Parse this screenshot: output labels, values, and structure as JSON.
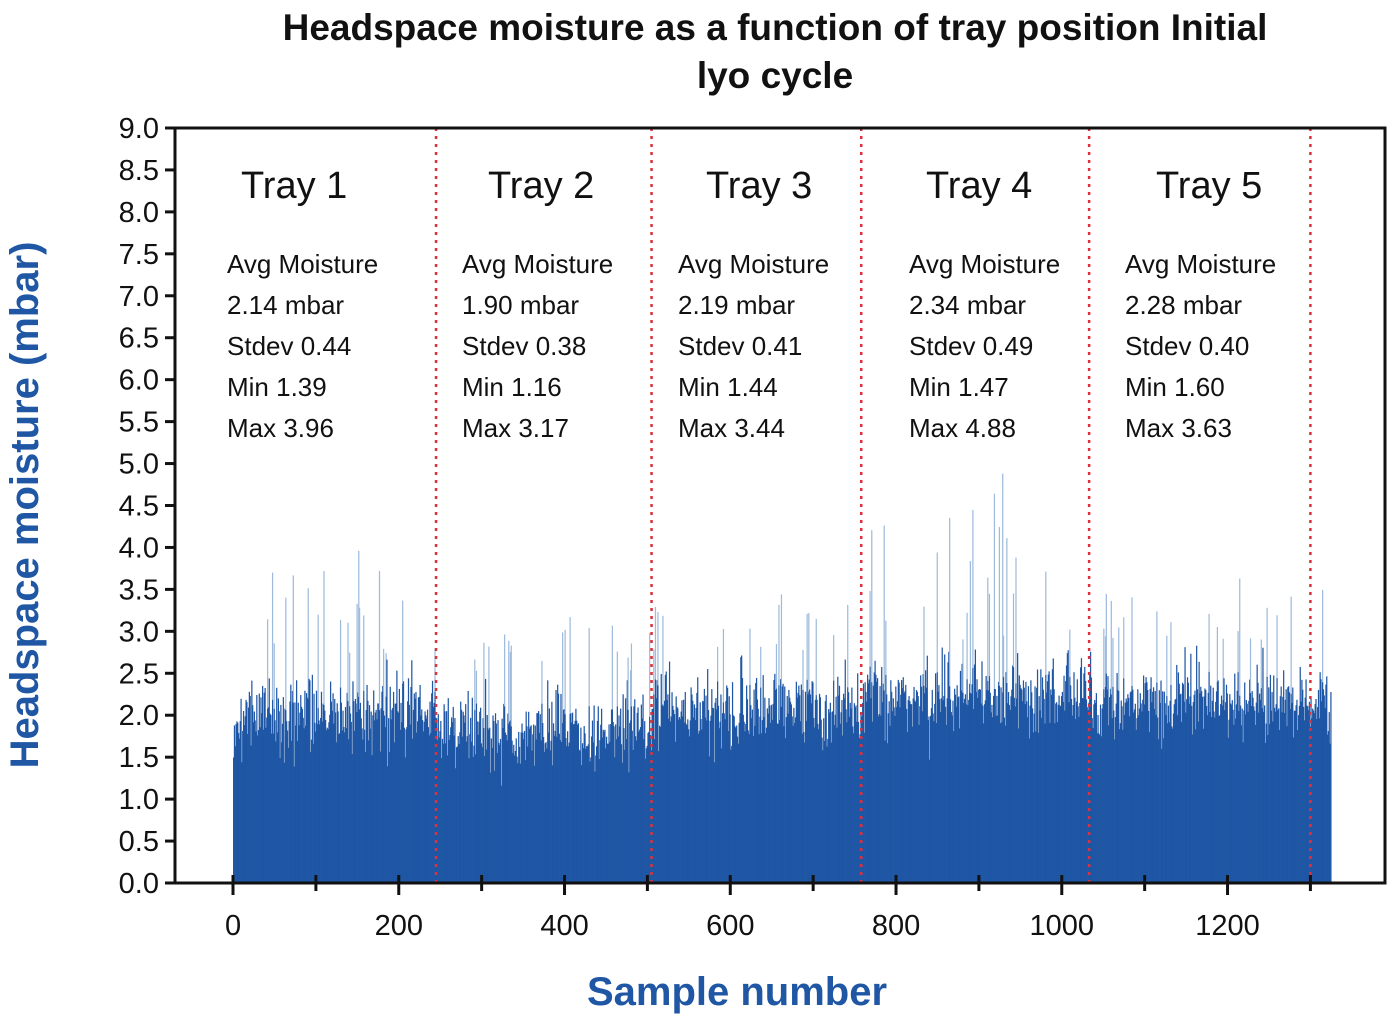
{
  "chart_data": {
    "type": "bar",
    "title": "Headspace moisture as a function of tray position Initial lyo cycle",
    "xlabel": "Sample number",
    "ylabel": "Headspace moisture (mbar)",
    "xlim": [
      -70,
      1390
    ],
    "ylim": [
      0,
      9.0
    ],
    "x_ticks": [
      0,
      200,
      400,
      600,
      800,
      1000,
      1200
    ],
    "y_ticks": [
      0.0,
      0.5,
      1.0,
      1.5,
      2.0,
      2.5,
      3.0,
      3.5,
      4.0,
      4.5,
      5.0,
      5.5,
      6.0,
      6.5,
      7.0,
      7.5,
      8.0,
      8.5,
      9.0
    ],
    "sample_count": 1325,
    "bar_color": "#1f57a5",
    "spike_color": "#9ebbdc",
    "divider_color": "#e0303a",
    "tray_dividers": [
      245,
      505,
      758,
      1033,
      1300
    ],
    "grid": false,
    "trays": [
      {
        "name": "Tray 1",
        "start": 0,
        "end": 245,
        "stats": [
          "Avg Moisture",
          "2.14 mbar",
          "Stdev 0.44",
          "Min 1.39",
          "Max 3.96"
        ],
        "avg": 2.14,
        "stdev": 0.44,
        "min": 1.39,
        "max": 3.96
      },
      {
        "name": "Tray 2",
        "start": 245,
        "end": 505,
        "stats": [
          "Avg Moisture",
          "1.90 mbar",
          "Stdev 0.38",
          "Min 1.16",
          "Max 3.17"
        ],
        "avg": 1.9,
        "stdev": 0.38,
        "min": 1.16,
        "max": 3.17
      },
      {
        "name": "Tray 3",
        "start": 505,
        "end": 758,
        "stats": [
          "Avg Moisture",
          "2.19 mbar",
          "Stdev 0.41",
          "Min 1.44",
          "Max 3.44"
        ],
        "avg": 2.19,
        "stdev": 0.41,
        "min": 1.44,
        "max": 3.44
      },
      {
        "name": "Tray 4",
        "start": 758,
        "end": 1033,
        "stats": [
          "Avg Moisture",
          "2.34 mbar",
          "Stdev 0.49",
          "Min 1.47",
          "Max 4.88"
        ],
        "avg": 2.34,
        "stdev": 0.49,
        "min": 1.47,
        "max": 4.88
      },
      {
        "name": "Tray 5",
        "start": 1033,
        "end": 1325,
        "stats": [
          "Avg Moisture",
          "2.28 mbar",
          "Stdev 0.40",
          "Min 1.60",
          "Max 3.63"
        ],
        "avg": 2.28,
        "stdev": 0.4,
        "min": 1.6,
        "max": 3.63
      }
    ]
  }
}
